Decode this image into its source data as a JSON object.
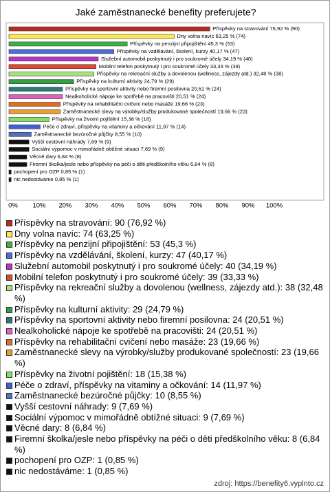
{
  "chart_data": {
    "type": "barh",
    "title": "Jaké zaměstnanecké benefity preferujete?",
    "categories": [
      "Příspěvky na stravování",
      "Dny volna navíc",
      "Příspěvky na penzijní připojištění",
      "Příspěvky na vzdělávání, školení, kurzy",
      "Služební automobil poskytnutý i pro soukromé účely",
      "Mobilní telefon poskytnutý i pro soukromé účely",
      "Příspěvky na rekreační služby a dovolenou (wellness, zájezdy atd.)",
      "Příspěvky na kulturní aktivity",
      "Příspěvky na sportovní aktivity nebo firemní posilovna",
      "Nealkoholické nápoje ke spotřebě na pracovišti",
      "Příspěvky na rehabilitační cvičení nebo masáže",
      "Zaměstnanecké slevy na výrobky/služby produkované společností",
      "Příspěvky na životní pojištění",
      "Péče o zdraví, příspěvky na vitaminy a očkování",
      "Zaměstnanecké bezúročné půjčky",
      "Vyšší cestovní náhrady",
      "Sociální výpomoc v mimořádně obtížné situaci",
      "Věcné dary",
      "Firemní školka/jesle nebo příspěvky na péči o děti předškolního věku",
      "pochopení pro OZP",
      "nic nedostáváme"
    ],
    "values": [
      76.92,
      63.25,
      45.3,
      40.17,
      34.19,
      33.33,
      32.48,
      24.79,
      20.51,
      20.51,
      19.66,
      19.66,
      15.38,
      11.97,
      8.55,
      7.69,
      7.69,
      6.84,
      6.84,
      0.85,
      0.85
    ],
    "counts": [
      90,
      74,
      53,
      47,
      40,
      39,
      38,
      29,
      24,
      24,
      23,
      23,
      18,
      14,
      10,
      9,
      9,
      8,
      8,
      1,
      1
    ],
    "value_labels": [
      "Příspěvky na stravování 76,92 % (90)",
      "Dny volna navíc 63,25 % (74)",
      "Příspěvky na penzijní připojištění 45,3 % (53)",
      "Příspěvky na vzdělávání, školení, kurzy 40,17 % (47)",
      "Služební automobil poskytnutý i pro soukromé účely 34,19 % (40)",
      "Mobilní telefon poskytnutý i pro soukromé účely 33,33 % (39)",
      "Příspěvky na rekreační služby a dovolenou (wellness, zájezdy atd.) 32,48 % (38)",
      "Příspěvky na kulturní aktivity 24,79 % (29)",
      "Příspěvky na sportovní aktivity nebo firemní posilovna 20,51 % (24)",
      "Nealkoholické nápoje ke spotřebě na pracovišti 20,51 % (24)",
      "Příspěvky na rehabilitační cvičení nebo masáže 19,66 % (23)",
      "Zaměstnanecké slevy na výrobky/služby produkované společností 19,66 % (23)",
      "Příspěvky na životní pojištění 15,38 % (18)",
      "Péče o zdraví, příspěvky na vitaminy a očkování 11,97 % (14)",
      "Zaměstnanecké bezúročné půjčky 8,55 % (10)",
      "Vyšší cestovní náhrady 7,69 % (9)",
      "Sociální výpomoc v mimořádně obtížné situaci 7,69 % (9)",
      "Věcné dary 6,84 % (8)",
      "Firemní školka/jesle nebo příspěvky na péči o děti předškolního věku 6,84 % (8)",
      "pochopení pro OZP 0,85 % (1)",
      "nic nedostáváme 0,85 % (1)"
    ],
    "legend_labels": [
      "Příspěvky na stravování: 90 (76,92 %)",
      "Dny volna navíc: 74 (63,25 %)",
      "Příspěvky na penzijní připojištění: 53 (45,3 %)",
      "Příspěvky na vzdělávání, školení, kurzy: 47 (40,17 %)",
      "Služební automobil poskytnutý i pro soukromé účely: 40 (34,19 %)",
      "Mobilní telefon poskytnutý i pro soukromé účely: 39 (33,33 %)",
      "Příspěvky na rekreační služby a dovolenou (wellness, zájezdy atd.): 38 (32,48 %)",
      "Příspěvky na kulturní aktivity: 29 (24,79 %)",
      "Příspěvky na sportovní aktivity nebo firemní posilovna: 24 (20,51 %)",
      "Nealkoholické nápoje ke spotřebě na pracovišti: 24 (20,51 %)",
      "Příspěvky na rehabilitační cvičení nebo masáže: 23 (19,66 %)",
      "Zaměstnanecké slevy na výrobky/služby produkované společností: 23 (19,66 %)",
      "Příspěvky na životní pojištění: 18 (15,38 %)",
      "Péče o zdraví, příspěvky na vitaminy a očkování: 14 (11,97 %)",
      "Zaměstnanecké bezúročné půjčky: 10 (8,55 %)",
      "Vyšší cestovní náhrady: 9 (7,69 %)",
      "Sociální výpomoc v mimořádně obtížné situaci: 9 (7,69 %)",
      "Věcné dary: 8 (6,84 %)",
      "Firemní školka/jesle nebo příspěvky na péči o děti předškolního věku: 8 (6,84 %)",
      "pochopení pro OZP: 1 (0,85 %)",
      "nic nedostáváme: 1 (0,85 %)"
    ],
    "colors": [
      "#c0281e",
      "#ffe84d",
      "#3cb43c",
      "#4a6fd8",
      "#c030c0",
      "#e04a2a",
      "#a8e07a",
      "#30a040",
      "#2a7a7a",
      "#e060c0",
      "#e07020",
      "#e8a030",
      "#80e060",
      "#4060d0",
      "#5070c8",
      "#111111",
      "#111111",
      "#111111",
      "#111111",
      "#111111",
      "#111111"
    ],
    "xlim": [
      0,
      100
    ],
    "xticks": [
      {
        "value": 0,
        "label": "0%"
      },
      {
        "value": 10,
        "label": "10%"
      },
      {
        "value": 20,
        "label": "20%"
      },
      {
        "value": 30,
        "label": "30%"
      },
      {
        "value": 40,
        "label": "40%"
      },
      {
        "value": 50,
        "label": "50%"
      },
      {
        "value": 60,
        "label": "60%"
      },
      {
        "value": 70,
        "label": "70%"
      },
      {
        "value": 80,
        "label": "80%"
      },
      {
        "value": 90,
        "label": "90%"
      },
      {
        "value": 100,
        "label": "100%"
      }
    ],
    "grid": false,
    "source": "zdroj: https://benefity6.vyplnto.cz"
  }
}
